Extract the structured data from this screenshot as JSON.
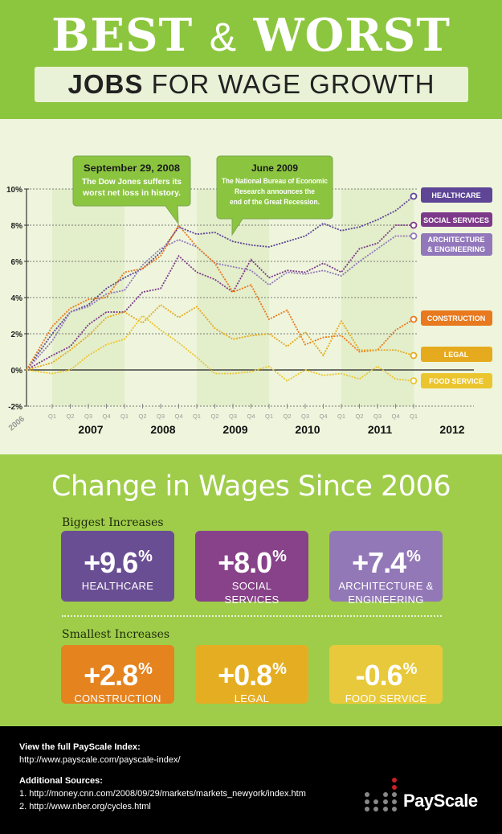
{
  "header": {
    "title_best": "BEST",
    "title_amp": "&",
    "title_worst": "WORST",
    "subtitle_bold": "JOBS",
    "subtitle_rest": "FOR WAGE GROWTH"
  },
  "chart_data": {
    "type": "line",
    "x_base_label": "2006",
    "quarters": [
      "Q1",
      "Q2",
      "Q3",
      "Q4",
      "Q1",
      "Q2",
      "Q3",
      "Q4",
      "Q1",
      "Q2",
      "Q3",
      "Q4",
      "Q1",
      "Q2",
      "Q3",
      "Q4",
      "Q1",
      "Q2",
      "Q3",
      "Q4",
      "Q1"
    ],
    "years": [
      "2007",
      "2008",
      "2009",
      "2010",
      "2011",
      "2012"
    ],
    "x": [
      "2006",
      "2007 Q1",
      "2007 Q2",
      "2007 Q3",
      "2007 Q4",
      "2008 Q1",
      "2008 Q2",
      "2008 Q3",
      "2008 Q4",
      "2009 Q1",
      "2009 Q2",
      "2009 Q3",
      "2009 Q4",
      "2010 Q1",
      "2010 Q2",
      "2010 Q3",
      "2010 Q4",
      "2011 Q1",
      "2011 Q2",
      "2011 Q3",
      "2011 Q4",
      "2012 Q1"
    ],
    "y_ticks": [
      "10%",
      "8%",
      "6%",
      "4%",
      "2%",
      "0%",
      "-2%"
    ],
    "ylim": [
      -2,
      10
    ],
    "grid": true,
    "legend": "right (end-of-line labels)",
    "series": [
      {
        "name": "HEALTHCARE",
        "color": "#5e4596",
        "values": [
          0,
          2.0,
          3.2,
          3.6,
          4.5,
          5.1,
          5.6,
          6.5,
          7.9,
          7.5,
          7.6,
          7.1,
          6.9,
          6.8,
          7.1,
          7.4,
          8.1,
          7.7,
          7.9,
          8.3,
          8.8,
          9.6
        ]
      },
      {
        "name": "SOCIAL SERVICES",
        "color": "#7e3a8a",
        "values": [
          0,
          0.8,
          1.3,
          2.5,
          3.2,
          3.2,
          4.3,
          4.5,
          6.3,
          5.4,
          5.0,
          4.3,
          6.1,
          5.1,
          5.5,
          5.4,
          5.9,
          5.4,
          6.7,
          7.0,
          8.0,
          8.0
        ]
      },
      {
        "name": "ARCHITECTURE & ENGINEERING",
        "color": "#9278bb",
        "values": [
          0,
          1.6,
          3.2,
          3.5,
          4.2,
          4.4,
          5.8,
          6.7,
          7.2,
          6.8,
          5.9,
          5.7,
          5.5,
          4.7,
          5.4,
          5.3,
          5.5,
          5.2,
          6.0,
          6.7,
          7.4,
          7.4
        ]
      },
      {
        "name": "CONSTRUCTION",
        "color": "#e8791e",
        "values": [
          0,
          2.4,
          3.4,
          3.9,
          4.0,
          5.4,
          5.6,
          6.3,
          8.0,
          6.8,
          5.9,
          4.3,
          4.7,
          2.8,
          3.3,
          1.4,
          1.8,
          1.9,
          1.0,
          1.1,
          2.2,
          2.8
        ]
      },
      {
        "name": "LEGAL",
        "color": "#e6aa1e",
        "values": [
          0,
          0.4,
          1.1,
          1.9,
          2.9,
          3.2,
          2.6,
          3.6,
          2.9,
          3.5,
          2.3,
          1.7,
          1.9,
          2.0,
          1.3,
          2.1,
          0.8,
          2.7,
          1.1,
          1.1,
          1.1,
          0.8
        ]
      },
      {
        "name": "FOOD SERVICE",
        "color": "#ebc52e",
        "values": [
          0,
          -0.2,
          0.0,
          0.8,
          1.4,
          1.7,
          3.0,
          2.2,
          1.5,
          0.7,
          -0.2,
          -0.2,
          -0.1,
          0.2,
          -0.6,
          0.0,
          -0.3,
          -0.2,
          -0.5,
          0.2,
          -0.5,
          -0.6
        ]
      }
    ],
    "legend_labels": [
      "HEALTHCARE",
      "SOCIAL SERVICES",
      "ARCHITECTURE",
      "& ENGINEERING",
      "CONSTRUCTION",
      "LEGAL",
      "FOOD SERVICE"
    ],
    "annotations": [
      {
        "title": "September 29, 2008",
        "text1": "The Dow Jones suffers its",
        "text2": "worst net loss in history.",
        "note": "1"
      },
      {
        "title": "June 2009",
        "text1": "The National Bureau of Economic",
        "text2": "Research announces the",
        "text3": "end of the Great Recession.",
        "note": "2"
      }
    ]
  },
  "summary": {
    "title": "Change in Wages Since 2006",
    "biggest_label": "Biggest Increases",
    "smallest_label": "Smallest Increases",
    "biggest": [
      {
        "value": "+9.6",
        "unit": "%",
        "line1": "HEALTHCARE",
        "line2": "",
        "color": "#6a4e93"
      },
      {
        "value": "+8.0",
        "unit": "%",
        "line1": "SOCIAL",
        "line2": "SERVICES",
        "color": "#874289"
      },
      {
        "value": "+7.4",
        "unit": "%",
        "line1": "ARCHITECTURE &",
        "line2": "ENGINEERING",
        "color": "#9378b7"
      }
    ],
    "smallest": [
      {
        "value": "+2.8",
        "unit": "%",
        "line1": "CONSTRUCTION",
        "color": "#e5831f"
      },
      {
        "value": "+0.8",
        "unit": "%",
        "line1": "LEGAL",
        "color": "#e5ae22"
      },
      {
        "value": "-0.6",
        "unit": "%",
        "line1": "FOOD SERVICE",
        "color": "#e7c93b"
      }
    ]
  },
  "footer": {
    "index_heading": "View the full PayScale Index:",
    "index_url": "http://www.payscale.com/payscale-index/",
    "sources_heading": "Additional Sources:",
    "source1": "1. http://money.cnn.com/2008/09/29/markets/markets_newyork/index.htm",
    "source2": "2. http://www.nber.org/cycles.html",
    "logo_text": "PayScale"
  }
}
